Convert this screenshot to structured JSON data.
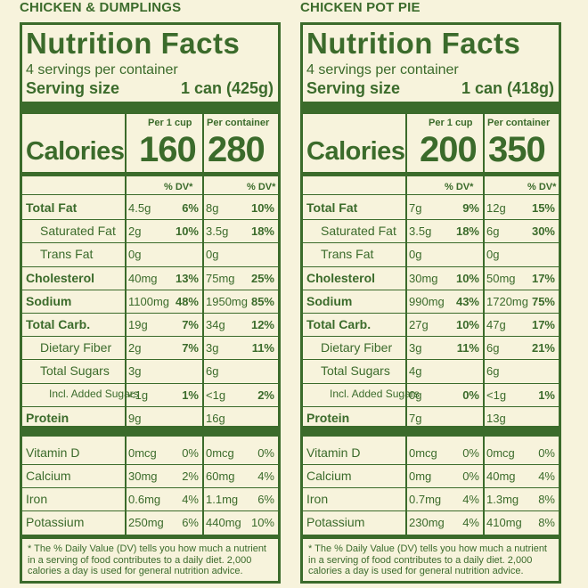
{
  "panels": [
    {
      "product_name": "CHICKEN & DUMPLINGS",
      "title": "Nutrition Facts",
      "servings": "4 servings per container",
      "serving_size_label": "Serving size",
      "serving_size_value": "1 can (425g)",
      "col1_head": "Per 1 cup",
      "col2_head": "Per container",
      "calories_label": "Calories",
      "calories_1": "160",
      "calories_2": "280",
      "dv_head": "% DV*",
      "nutrients": [
        {
          "name": "Total Fat",
          "amt1": "4.5g",
          "dv1": "6%",
          "amt2": "8g",
          "dv2": "10%"
        },
        {
          "name": "Saturated Fat",
          "amt1": "2g",
          "dv1": "10%",
          "amt2": "3.5g",
          "dv2": "18%"
        },
        {
          "name": "Trans Fat",
          "amt1": "0g",
          "dv1": "",
          "amt2": "0g",
          "dv2": ""
        },
        {
          "name": "Cholesterol",
          "amt1": "40mg",
          "dv1": "13%",
          "amt2": "75mg",
          "dv2": "25%"
        },
        {
          "name": "Sodium",
          "amt1": "1100mg",
          "dv1": "48%",
          "amt2": "1950mg",
          "dv2": "85%"
        },
        {
          "name": "Total Carb.",
          "amt1": "19g",
          "dv1": "7%",
          "amt2": "34g",
          "dv2": "12%"
        },
        {
          "name": "Dietary Fiber",
          "amt1": "2g",
          "dv1": "7%",
          "amt2": "3g",
          "dv2": "11%"
        },
        {
          "name": "Total Sugars",
          "amt1": "3g",
          "dv1": "",
          "amt2": "6g",
          "dv2": ""
        },
        {
          "name": "Incl. Added Sugars",
          "amt1": "<1g",
          "dv1": "1%",
          "amt2": "<1g",
          "dv2": "2%"
        },
        {
          "name": "Protein",
          "amt1": "9g",
          "dv1": "",
          "amt2": "16g",
          "dv2": ""
        }
      ],
      "vitamins": [
        {
          "name": "Vitamin D",
          "amt1": "0mcg",
          "dv1": "0%",
          "amt2": "0mcg",
          "dv2": "0%"
        },
        {
          "name": "Calcium",
          "amt1": "30mg",
          "dv1": "2%",
          "amt2": "60mg",
          "dv2": "4%"
        },
        {
          "name": "Iron",
          "amt1": "0.6mg",
          "dv1": "4%",
          "amt2": "1.1mg",
          "dv2": "6%"
        },
        {
          "name": "Potassium",
          "amt1": "250mg",
          "dv1": "6%",
          "amt2": "440mg",
          "dv2": "10%"
        }
      ],
      "footnote": "* The % Daily Value (DV) tells you how much a nutrient in a serving of food contributes to a daily diet. 2,000 calories a day is used for general nutrition advice."
    },
    {
      "product_name": "CHICKEN POT PIE",
      "title": "Nutrition Facts",
      "servings": "4 servings per container",
      "serving_size_label": "Serving size",
      "serving_size_value": "1 can (418g)",
      "col1_head": "Per 1 cup",
      "col2_head": "Per container",
      "calories_label": "Calories",
      "calories_1": "200",
      "calories_2": "350",
      "dv_head": "% DV*",
      "nutrients": [
        {
          "name": "Total Fat",
          "amt1": "7g",
          "dv1": "9%",
          "amt2": "12g",
          "dv2": "15%"
        },
        {
          "name": "Saturated Fat",
          "amt1": "3.5g",
          "dv1": "18%",
          "amt2": "6g",
          "dv2": "30%"
        },
        {
          "name": "Trans Fat",
          "amt1": "0g",
          "dv1": "",
          "amt2": "0g",
          "dv2": ""
        },
        {
          "name": "Cholesterol",
          "amt1": "30mg",
          "dv1": "10%",
          "amt2": "50mg",
          "dv2": "17%"
        },
        {
          "name": "Sodium",
          "amt1": "990mg",
          "dv1": "43%",
          "amt2": "1720mg",
          "dv2": "75%"
        },
        {
          "name": "Total Carb.",
          "amt1": "27g",
          "dv1": "10%",
          "amt2": "47g",
          "dv2": "17%"
        },
        {
          "name": "Dietary Fiber",
          "amt1": "3g",
          "dv1": "11%",
          "amt2": "6g",
          "dv2": "21%"
        },
        {
          "name": "Total Sugars",
          "amt1": "4g",
          "dv1": "",
          "amt2": "6g",
          "dv2": ""
        },
        {
          "name": "Incl. Added Sugars",
          "amt1": "0g",
          "dv1": "0%",
          "amt2": "<1g",
          "dv2": "1%"
        },
        {
          "name": "Protein",
          "amt1": "7g",
          "dv1": "",
          "amt2": "13g",
          "dv2": ""
        }
      ],
      "vitamins": [
        {
          "name": "Vitamin D",
          "amt1": "0mcg",
          "dv1": "0%",
          "amt2": "0mcg",
          "dv2": "0%"
        },
        {
          "name": "Calcium",
          "amt1": "0mg",
          "dv1": "0%",
          "amt2": "40mg",
          "dv2": "4%"
        },
        {
          "name": "Iron",
          "amt1": "0.7mg",
          "dv1": "4%",
          "amt2": "1.3mg",
          "dv2": "8%"
        },
        {
          "name": "Potassium",
          "amt1": "230mg",
          "dv1": "4%",
          "amt2": "410mg",
          "dv2": "8%"
        }
      ],
      "footnote": "* The % Daily Value (DV) tells you how much a nutrient in a serving of food contributes to a daily diet. 2,000 calories a day is used for general nutrition advice."
    }
  ]
}
